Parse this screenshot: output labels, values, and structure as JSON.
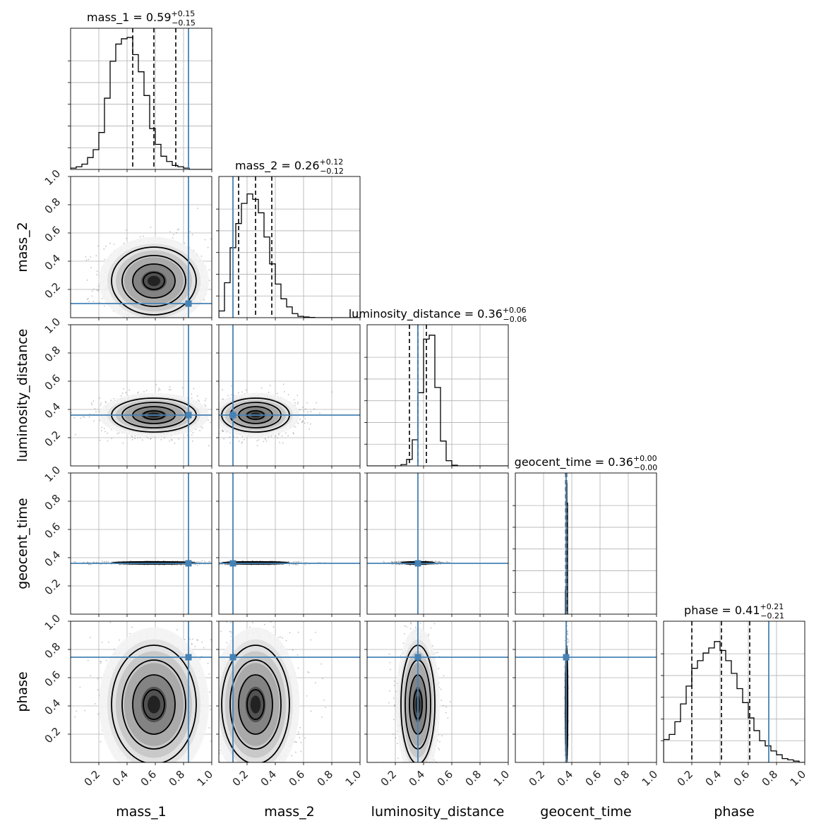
{
  "chart_data": {
    "type": "corner",
    "parameters": [
      "mass_1",
      "mass_2",
      "luminosity_distance",
      "geocent_time",
      "phase"
    ],
    "axis_labels": [
      "mass_1",
      "mass_2",
      "luminosity_distance",
      "geocent_time",
      "phase"
    ],
    "range": [
      0,
      1
    ],
    "ticks": [
      0.2,
      0.4,
      0.6,
      0.8,
      1.0
    ],
    "tick_labels": [
      "0.2",
      "0.4",
      "0.6",
      "0.8",
      "1.0"
    ],
    "grid": true,
    "truth_color": "#4682b4",
    "truths": [
      0.835,
      0.1,
      0.36,
      0.36,
      0.745
    ],
    "titles": [
      {
        "name": "mass_1",
        "median": "0.59",
        "plus": "+0.15",
        "minus": "−0.15"
      },
      {
        "name": "mass_2",
        "median": "0.26",
        "plus": "+0.12",
        "minus": "−0.12"
      },
      {
        "name": "luminosity_distance",
        "median": "0.36",
        "plus": "+0.06",
        "minus": "−0.06"
      },
      {
        "name": "geocent_time",
        "median": "0.36",
        "plus": "+0.00",
        "minus": "−0.00"
      },
      {
        "name": "phase",
        "median": "0.41",
        "plus": "+0.21",
        "minus": "−0.21"
      }
    ],
    "quantiles": [
      [
        0.44,
        0.59,
        0.745
      ],
      [
        0.14,
        0.26,
        0.375
      ],
      [
        0.3,
        0.36,
        0.42
      ],
      [
        0.357,
        0.36,
        0.363
      ],
      [
        0.2,
        0.41,
        0.61
      ]
    ],
    "histograms": [
      {
        "bin_edges_start": 0.0,
        "bin_width": 0.04,
        "values": [
          1,
          2,
          4,
          9,
          15,
          28,
          54,
          82,
          95,
          99,
          100,
          87,
          74,
          56,
          31,
          19,
          10,
          6,
          3,
          2,
          1,
          0,
          0,
          0,
          0
        ]
      },
      {
        "bin_edges_start": 0.0,
        "bin_width": 0.04,
        "values": [
          5,
          26,
          52,
          70,
          85,
          92,
          88,
          78,
          60,
          40,
          25,
          14,
          8,
          3,
          1,
          0.5,
          0.2,
          0,
          0,
          0,
          0,
          0,
          0,
          0,
          0
        ]
      },
      {
        "bin_edges_start": 0.0,
        "bin_width": 0.04,
        "values": [
          0,
          0,
          0,
          0,
          0,
          0,
          1,
          5,
          20,
          56,
          97,
          100,
          60,
          19,
          4,
          0.5,
          0,
          0,
          0,
          0,
          0,
          0,
          0,
          0,
          0
        ]
      },
      {
        "bin_edges_start": 0.35,
        "bin_width": 0.005,
        "values": [
          0,
          18,
          100,
          85,
          0
        ]
      },
      {
        "bin_edges_start": 0.0,
        "bin_width": 0.04,
        "values": [
          18,
          22,
          32,
          46,
          60,
          74,
          80,
          86,
          90,
          95,
          88,
          80,
          70,
          58,
          47,
          35,
          25,
          17,
          13,
          9,
          6,
          3,
          2,
          1,
          0
        ]
      }
    ],
    "marginal_axis_max": [
      107,
      105,
      108,
      108,
      111
    ],
    "posterior_model": {
      "means": [
        0.59,
        0.26,
        0.36,
        0.363,
        0.41
      ],
      "sigmas": [
        0.15,
        0.12,
        0.06,
        0.004,
        0.21
      ]
    }
  }
}
